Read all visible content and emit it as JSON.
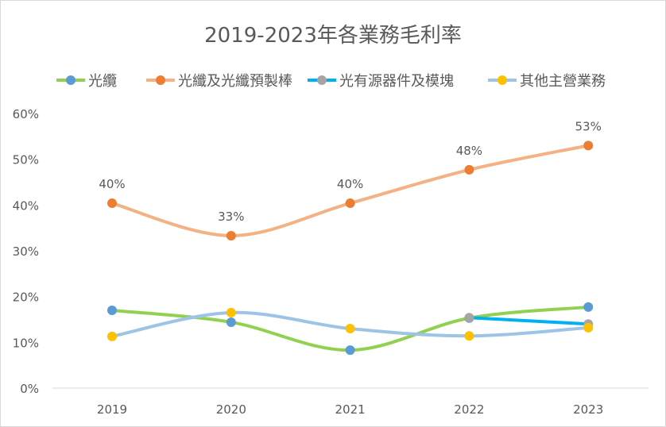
{
  "chart_data": {
    "type": "line",
    "title": "2019-2023年各業務毛利率",
    "categories": [
      "2019",
      "2020",
      "2021",
      "2022",
      "2023"
    ],
    "ylim": [
      0,
      60
    ],
    "yticks": [
      "0%",
      "10%",
      "20%",
      "30%",
      "40%",
      "50%",
      "60%"
    ],
    "grid": false,
    "legend_position": "top",
    "smooth": true,
    "series": [
      {
        "name": "光纜",
        "values": [
          17.0,
          14.4,
          8.3,
          15.3,
          17.7
        ],
        "line_color": "#92d050",
        "marker_color": "#5b9bd5",
        "labels": null
      },
      {
        "name": "光纖及光纖預製棒",
        "values": [
          40.4,
          33.3,
          40.4,
          47.7,
          53.0
        ],
        "line_color": "#f4b183",
        "marker_color": "#ed7d31",
        "labels": [
          "40%",
          "33%",
          "40%",
          "48%",
          "53%"
        ]
      },
      {
        "name": "光有源器件及模塊",
        "values": [
          null,
          null,
          null,
          15.4,
          14.0
        ],
        "line_color": "#00b0f0",
        "marker_color": "#a5a5a5",
        "labels": null
      },
      {
        "name": "其他主營業務",
        "values": [
          11.3,
          16.5,
          13.0,
          11.4,
          13.2
        ],
        "line_color": "#9dc3e6",
        "marker_color": "#ffc000",
        "labels": null
      }
    ]
  }
}
